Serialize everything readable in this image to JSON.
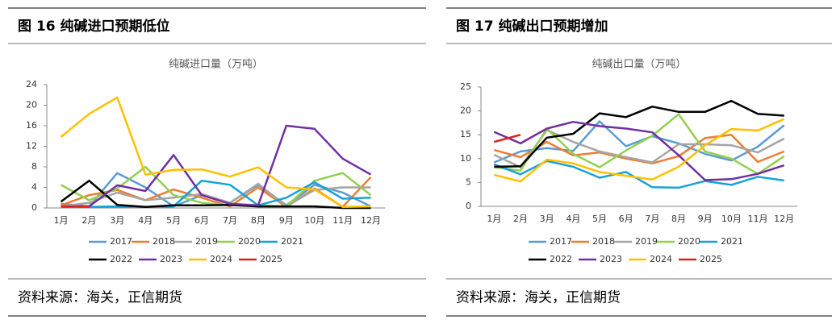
{
  "panels": [
    {
      "heading": "图 16  纯碱进口预期低位",
      "source": "资料来源：海关，正信期货"
    },
    {
      "heading": "图 17  纯碱出口预期增加",
      "source": "资料来源：海关，正信期货"
    }
  ],
  "chart_data": [
    {
      "type": "line",
      "title": "纯碱进口量（万吨）",
      "categories": [
        "1月",
        "2月",
        "3月",
        "4月",
        "5月",
        "6月",
        "7月",
        "8月",
        "9月",
        "10月",
        "11月",
        "12月"
      ],
      "ylim": [
        0,
        24
      ],
      "yticks": [
        0,
        4,
        8,
        12,
        16,
        20,
        24
      ],
      "series": [
        {
          "name": "2017",
          "color": "#5b9bd5",
          "values": [
            0.8,
            0.3,
            6.8,
            4,
            0.3,
            2.5,
            1,
            4.5,
            0.5,
            4.5,
            3,
            0.3
          ]
        },
        {
          "name": "2018",
          "color": "#ed7d31",
          "values": [
            0.5,
            2.5,
            3.5,
            1.5,
            3.6,
            2,
            0.3,
            4,
            0.2,
            3.8,
            0.2,
            6
          ]
        },
        {
          "name": "2019",
          "color": "#a5a5a5",
          "values": [
            0.3,
            1,
            3,
            1.5,
            2,
            2.7,
            1,
            4.7,
            0.3,
            3.5,
            4,
            4
          ]
        },
        {
          "name": "2020",
          "color": "#92d050",
          "values": [
            4.5,
            1.5,
            3.8,
            8,
            2.5,
            1,
            0.5,
            0.5,
            0.3,
            5.3,
            6.8,
            2.5
          ]
        },
        {
          "name": "2021",
          "color": "#17a2d8",
          "values": [
            0.2,
            0.2,
            0.3,
            0.2,
            0.3,
            5.3,
            4.5,
            0.5,
            2,
            5,
            1.8,
            2
          ]
        },
        {
          "name": "2022",
          "color": "#000000",
          "values": [
            1.2,
            5.3,
            0.6,
            0.2,
            0.5,
            0.5,
            0.6,
            0.3,
            0.3,
            0.3,
            0,
            0
          ]
        },
        {
          "name": "2023",
          "color": "#7030a0",
          "values": [
            0.3,
            0.3,
            4.4,
            3.3,
            10.3,
            2.5,
            0.8,
            0.5,
            16,
            15.4,
            9.6,
            6.5
          ]
        },
        {
          "name": "2024",
          "color": "#ffc000",
          "values": [
            13.8,
            18.3,
            21.5,
            6.5,
            7.4,
            7.5,
            6.1,
            7.9,
            4,
            3.6,
            0.2,
            0.3
          ]
        },
        {
          "name": "2025",
          "color": "#e02020",
          "values": [
            0.3,
            0.3,
            null,
            null,
            null,
            null,
            null,
            null,
            null,
            null,
            null,
            null
          ]
        }
      ]
    },
    {
      "type": "line",
      "title": "纯碱出口量（万吨）",
      "categories": [
        "1月",
        "2月",
        "3月",
        "4月",
        "5月",
        "6月",
        "7月",
        "8月",
        "9月",
        "10月",
        "11月",
        "12月"
      ],
      "ylim": [
        0,
        25
      ],
      "yticks": [
        0,
        5,
        10,
        15,
        20,
        25
      ],
      "series": [
        {
          "name": "2017",
          "color": "#5b9bd5",
          "values": [
            9.2,
            11.5,
            12.2,
            11.6,
            17.8,
            12.6,
            14.7,
            13.2,
            11,
            9.6,
            12.5,
            17
          ]
        },
        {
          "name": "2018",
          "color": "#ed7d31",
          "values": [
            11.8,
            10.3,
            13.5,
            10.7,
            11.3,
            10,
            9,
            10.5,
            14.3,
            15,
            9.3,
            11.5
          ]
        },
        {
          "name": "2019",
          "color": "#a5a5a5",
          "values": [
            10.8,
            8.2,
            16,
            13.5,
            11.5,
            10.3,
            9.2,
            13,
            13,
            12.8,
            11.3,
            14.2
          ]
        },
        {
          "name": "2020",
          "color": "#92d050",
          "values": [
            8.2,
            7.5,
            16.3,
            11,
            8.2,
            11.7,
            14.8,
            19.3,
            11.5,
            10,
            6.8,
            10.5
          ]
        },
        {
          "name": "2021",
          "color": "#17a2d8",
          "values": [
            8.8,
            6.7,
            9.5,
            8.3,
            6,
            7.2,
            4,
            3.9,
            5.3,
            4.5,
            6.2,
            5.4
          ]
        },
        {
          "name": "2022",
          "color": "#000000",
          "values": [
            8.3,
            8.4,
            14.4,
            15.2,
            19.5,
            18.7,
            20.9,
            19.8,
            19.8,
            22.1,
            19.4,
            19
          ]
        },
        {
          "name": "2023",
          "color": "#7030a0",
          "values": [
            15.6,
            13.2,
            16.3,
            17.7,
            16.8,
            16.3,
            15.5,
            10.7,
            5.5,
            5.7,
            6.8,
            8.6
          ]
        },
        {
          "name": "2024",
          "color": "#ffc000",
          "values": [
            6.6,
            5.2,
            9.8,
            9,
            7.2,
            6.4,
            5.6,
            8.3,
            12.8,
            16.2,
            15.9,
            18.3
          ]
        },
        {
          "name": "2025",
          "color": "#e02020",
          "values": [
            13.5,
            15,
            null,
            null,
            null,
            null,
            null,
            null,
            null,
            null,
            null,
            null
          ]
        }
      ]
    }
  ]
}
